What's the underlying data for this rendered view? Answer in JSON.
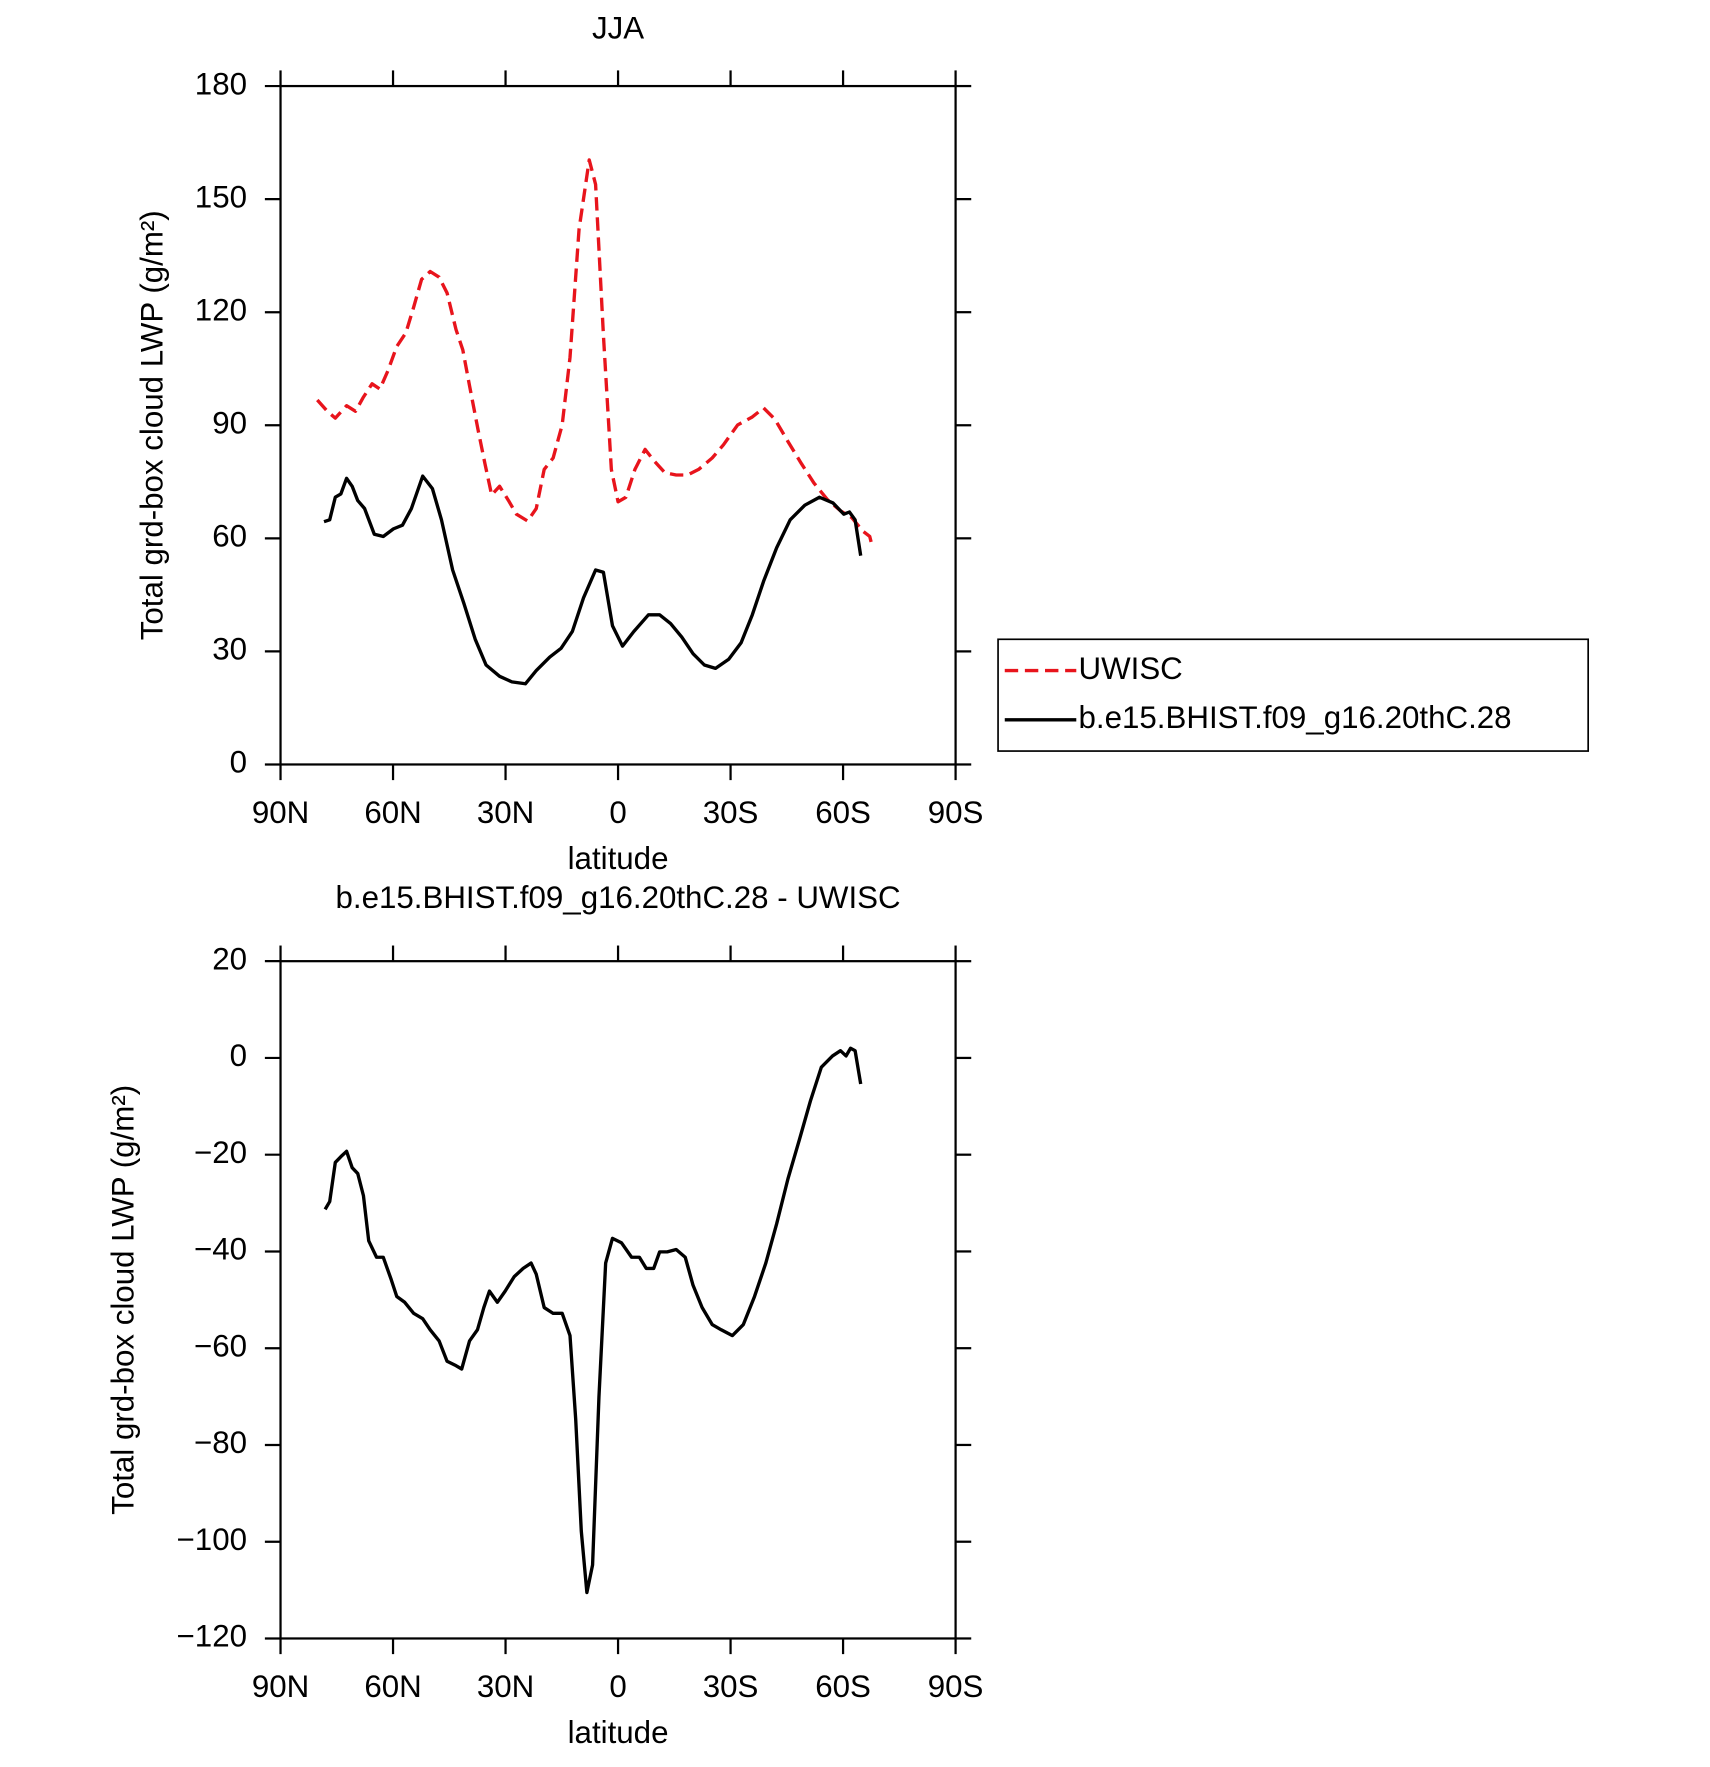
{
  "chart_data": [
    {
      "type": "line",
      "title": "JJA",
      "x_label": "latitude",
      "y_label": "Total grd-box cloud LWP (g/m²)",
      "xlim": [
        90,
        -90
      ],
      "xticks": [
        {
          "value": 90,
          "label": "90N"
        },
        {
          "value": 60,
          "label": "60N"
        },
        {
          "value": 30,
          "label": "30N"
        },
        0,
        {
          "value": -30,
          "label": "30S"
        },
        {
          "value": -60,
          "label": "60S"
        },
        {
          "value": -90,
          "label": "90S"
        }
      ],
      "ylim": [
        0,
        180
      ],
      "yticks": [
        0,
        30,
        60,
        90,
        120,
        150,
        180
      ],
      "legend": "right",
      "series": [
        {
          "name": "UWISC",
          "color": "#e8141c",
          "line_style": "dashed",
          "x": [
            80.2,
            77.5,
            75.4,
            72.4,
            70.0,
            68.0,
            65.6,
            63.5,
            61.4,
            59.0,
            56.6,
            54.5,
            52.4,
            50.1,
            47.7,
            45.6,
            43.2,
            41.4,
            39.6,
            37.3,
            35.5,
            33.7,
            31.6,
            29.2,
            27.1,
            24.1,
            21.8,
            19.7,
            17.3,
            14.9,
            12.8,
            10.4,
            7.7,
            6.0,
            3.9,
            1.8,
            0,
            -2.1,
            -4.5,
            -7.2,
            -9.5,
            -12.5,
            -15.5,
            -18.5,
            -21.5,
            -25.1,
            -28.1,
            -31.9,
            -35.8,
            -38.8,
            -41.8,
            -45.3,
            -48.9,
            -52.2,
            -55.8,
            -59.3,
            -62.3,
            -65.3,
            -67.1,
            -67.7
          ],
          "values": [
            96.7,
            93.7,
            91.9,
            95.2,
            93.7,
            97.3,
            101,
            99.6,
            104.4,
            110.9,
            114.5,
            121.3,
            128.7,
            130.8,
            129.3,
            125.1,
            115.4,
            110,
            100.5,
            88.7,
            79.8,
            71.5,
            73.8,
            70,
            66.4,
            64.6,
            67.9,
            78.3,
            81.3,
            90.1,
            108,
            142,
            160.4,
            153.9,
            113.9,
            78.3,
            69.7,
            70.9,
            78.3,
            83.6,
            80.7,
            77.4,
            76.8,
            76.8,
            78.3,
            81.3,
            84.8,
            90.1,
            92.2,
            94.6,
            91.6,
            85.7,
            79.8,
            74.7,
            70.3,
            67.3,
            65.5,
            61.9,
            60.5,
            58.1
          ]
        },
        {
          "name": "b.e15.BHIST.f09_g16.20thC.28",
          "color": "#000000",
          "line_style": "solid",
          "x": [
            78.4,
            76.9,
            75.4,
            73.9,
            72.4,
            70.9,
            69.4,
            67.6,
            65.0,
            62.6,
            59.9,
            57.5,
            55.1,
            52.1,
            49.5,
            47.1,
            44.1,
            41.1,
            38.1,
            35.2,
            31.6,
            28.3,
            24.7,
            21.8,
            18.2,
            15.2,
            12.2,
            9.2,
            6.0,
            3.9,
            1.5,
            -1.2,
            -4.2,
            -8.1,
            -11.1,
            -14.0,
            -17.0,
            -20.0,
            -23.0,
            -26.0,
            -29.5,
            -32.8,
            -35.8,
            -38.8,
            -42.3,
            -45.9,
            -49.8,
            -53.7,
            -57.3,
            -60.2,
            -61.7,
            -63.2,
            -64.7
          ],
          "values": [
            64.4,
            64.9,
            70.9,
            71.8,
            75.9,
            73.8,
            70,
            67.9,
            61.1,
            60.5,
            62.5,
            63.5,
            67.9,
            76.5,
            73.2,
            64.9,
            51.6,
            42.7,
            33.2,
            26.4,
            23.4,
            21.9,
            21.4,
            24.9,
            28.5,
            30.8,
            35.3,
            44.2,
            51.6,
            51,
            36.8,
            31.4,
            35.3,
            39.7,
            39.7,
            37.4,
            33.8,
            29.4,
            26.4,
            25.5,
            27.9,
            32.3,
            39.7,
            48.6,
            57.5,
            64.9,
            68.8,
            70.9,
            69.4,
            66.4,
            67.0,
            64.9,
            55.4
          ]
        }
      ]
    },
    {
      "type": "line",
      "title": "b.e15.BHIST.f09_g16.20thC.28 - UWISC",
      "x_label": "latitude",
      "y_label": "Total grd-box cloud LWP (g/m²)",
      "xlim": [
        90,
        -90
      ],
      "xticks": [
        {
          "value": 90,
          "label": "90N"
        },
        {
          "value": 60,
          "label": "60N"
        },
        {
          "value": 30,
          "label": "30N"
        },
        0,
        {
          "value": -30,
          "label": "30S"
        },
        {
          "value": -60,
          "label": "60S"
        },
        {
          "value": -90,
          "label": "90S"
        }
      ],
      "ylim": [
        -120,
        20
      ],
      "yticks": [
        {
          "value": -120,
          "label": "−120"
        },
        {
          "value": -100,
          "label": "−100"
        },
        {
          "value": -80,
          "label": "−80"
        },
        {
          "value": -60,
          "label": "−60"
        },
        {
          "value": -40,
          "label": "−40"
        },
        {
          "value": -20,
          "label": "−20"
        },
        0,
        20
      ],
      "series": [
        {
          "name": null,
          "color": "#000000",
          "line_style": "solid",
          "x": [
            78.1,
            76.9,
            75.4,
            73.9,
            72.4,
            70.9,
            69.4,
            67.9,
            66.5,
            64.4,
            62.6,
            60.5,
            59.0,
            56.9,
            54.5,
            52.1,
            50.1,
            47.7,
            45.6,
            43.2,
            41.7,
            39.6,
            37.5,
            35.8,
            34.3,
            32.2,
            30.1,
            27.7,
            25.3,
            23.2,
            21.8,
            19.7,
            17.3,
            14.9,
            12.8,
            11.3,
            9.8,
            8.3,
            6.8,
            5.1,
            3.3,
            1.5,
            -0.9,
            -3.6,
            -5.7,
            -7.5,
            -9.5,
            -11.1,
            -13.1,
            -15.5,
            -17.9,
            -20.0,
            -22.4,
            -25.1,
            -27.5,
            -30.5,
            -33.4,
            -36.4,
            -39.4,
            -42.3,
            -45.3,
            -48.3,
            -51.3,
            -54.2,
            -57.2,
            -59.3,
            -60.8,
            -62.0,
            -63.2,
            -64.7
          ],
          "values": [
            -31.3,
            -29.7,
            -21.6,
            -20.4,
            -19.3,
            -22.7,
            -23.9,
            -28.5,
            -37.8,
            -41.2,
            -41.2,
            -45.8,
            -49.3,
            -50.5,
            -52.8,
            -53.9,
            -56.2,
            -58.5,
            -62.7,
            -63.6,
            -64.3,
            -58.5,
            -56.2,
            -51.6,
            -48.2,
            -50.5,
            -48.2,
            -45.2,
            -43.5,
            -42.4,
            -44.7,
            -51.6,
            -52.8,
            -52.8,
            -57.4,
            -74.7,
            -97.8,
            -110.5,
            -104.8,
            -70.1,
            -42.4,
            -37.3,
            -38.2,
            -41.2,
            -41.2,
            -43.5,
            -43.5,
            -40.1,
            -40.1,
            -39.6,
            -41.2,
            -47.0,
            -51.6,
            -55.1,
            -56.2,
            -57.4,
            -55.1,
            -49.3,
            -42.4,
            -34.3,
            -25.0,
            -17.0,
            -8.9,
            -1.9,
            0.4,
            1.5,
            0.4,
            2.0,
            1.5,
            -5.4
          ]
        }
      ]
    }
  ]
}
